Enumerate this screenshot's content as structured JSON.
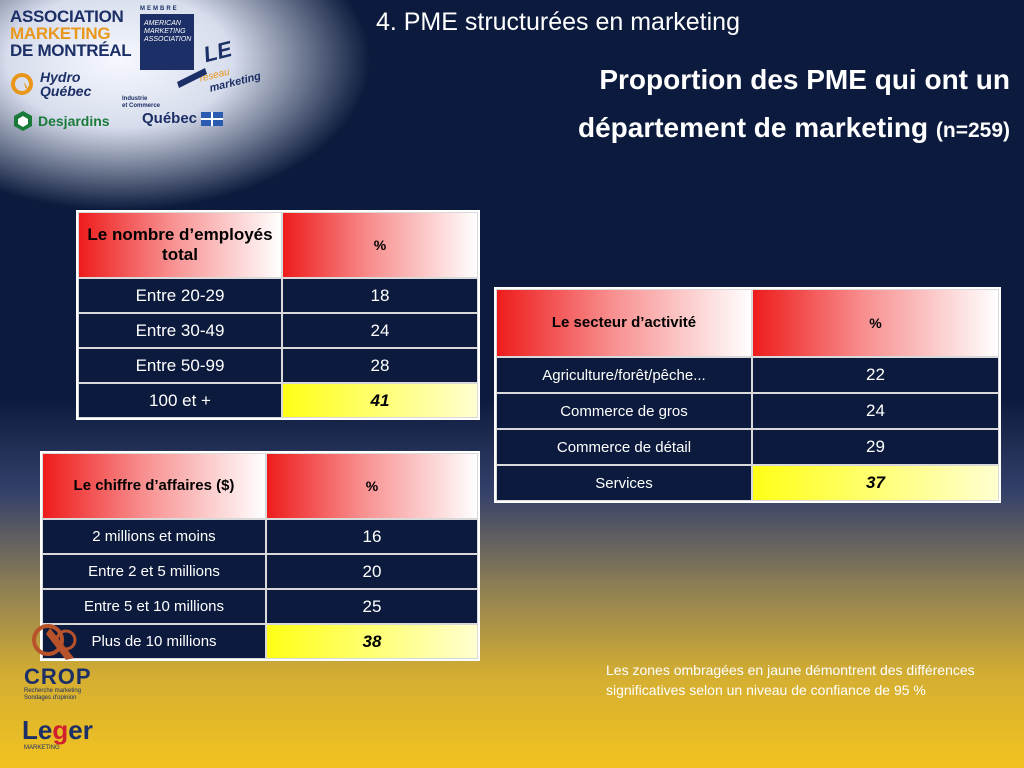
{
  "header": {
    "section_title": "4. PME structurées en marketing",
    "main_title": "Proportion des PME qui ont un département de marketing",
    "sample_note": "(n=259)"
  },
  "logos": {
    "association": [
      "ASSOCIATION",
      "MARKETING",
      "DE MONTRÉAL"
    ],
    "ama_tag": "MEMBRE",
    "ama": [
      "AMERICAN",
      "MARKETING",
      "ASSOCIATION"
    ],
    "le_reseau": [
      "LE",
      "réseau",
      "marketing"
    ],
    "hydro": [
      "Hydro",
      "Québec"
    ],
    "industrie": [
      "Industrie",
      "et Commerce"
    ],
    "desjardins": "Desjardins",
    "quebec": "Québec",
    "crop": "CROP",
    "crop_sub": [
      "Recherche marketing",
      "Sondages d'opinion"
    ],
    "leger_pre": "Le",
    "leger_g": "g",
    "leger_post": "er",
    "leger_sub": "MARKETING"
  },
  "tables": {
    "employees": {
      "header": [
        "Le nombre d’employés total",
        "%"
      ],
      "rows": [
        [
          "Entre 20-29",
          "18"
        ],
        [
          "Entre 30-49",
          "24"
        ],
        [
          "Entre 50-99",
          "28"
        ],
        [
          "100 et +",
          "41"
        ]
      ]
    },
    "sector": {
      "header": [
        "Le secteur d’activité",
        "%"
      ],
      "rows": [
        [
          "Agriculture/forêt/pêche...",
          "22"
        ],
        [
          "Commerce de gros",
          "24"
        ],
        [
          "Commerce de détail",
          "29"
        ],
        [
          "Services",
          "37"
        ]
      ]
    },
    "revenue": {
      "header": [
        "Le chiffre d’affaires ($)",
        "%"
      ],
      "rows": [
        [
          "2 millions et moins",
          "16"
        ],
        [
          "Entre 2 et 5 millions",
          "20"
        ],
        [
          "Entre 5 et 10 millions",
          "25"
        ],
        [
          "Plus de 10 millions",
          "38"
        ]
      ]
    }
  },
  "footnote": "Les zones ombragées en jaune démontrent des différences significatives selon un niveau de confiance de 95 %",
  "colors": {
    "background": "#0c1b3d",
    "header_red": "#ee1c1c",
    "highlight_yellow": "#ffff17",
    "footer_gold": "#f2c320"
  }
}
